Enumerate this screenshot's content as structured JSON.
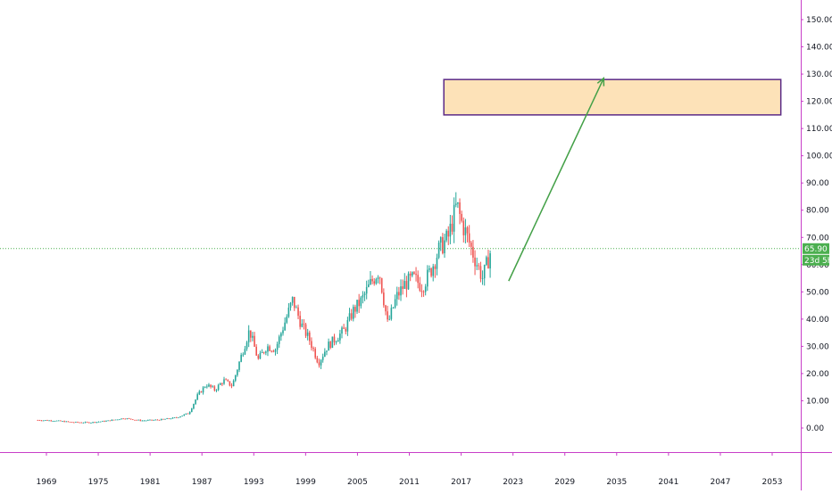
{
  "chart_data": {
    "type": "candlestick",
    "title": "",
    "xlabel": "",
    "ylabel": "",
    "x_ticks": [
      "1969",
      "1975",
      "1981",
      "1987",
      "1993",
      "1999",
      "2005",
      "2011",
      "2017",
      "2023",
      "2029",
      "2035",
      "2041",
      "2047",
      "2053"
    ],
    "y_ticks": [
      "150.00",
      "140.00",
      "130.00",
      "120.00",
      "110.00",
      "100.00",
      "90.00",
      "80.00",
      "70.00",
      "60.00",
      "50.00",
      "40.00",
      "30.00",
      "20.00",
      "10.00",
      "0.00"
    ],
    "xlim": [
      1968,
      2056
    ],
    "ylim": [
      -10,
      155
    ],
    "grid": false,
    "price_trajectory": [
      [
        1968.0,
        2.9
      ],
      [
        1970.0,
        2.7
      ],
      [
        1972.0,
        2.1
      ],
      [
        1974.0,
        2.0
      ],
      [
        1976.0,
        2.6
      ],
      [
        1978.0,
        3.6
      ],
      [
        1980.0,
        2.7
      ],
      [
        1982.0,
        3.0
      ],
      [
        1984.0,
        3.8
      ],
      [
        1985.5,
        5.5
      ],
      [
        1986.5,
        12.0
      ],
      [
        1987.5,
        16.0
      ],
      [
        1988.5,
        14.0
      ],
      [
        1989.5,
        17.5
      ],
      [
        1990.5,
        15.5
      ],
      [
        1991.5,
        26.0
      ],
      [
        1992.5,
        36.0
      ],
      [
        1993.5,
        25.0
      ],
      [
        1994.5,
        30.0
      ],
      [
        1995.5,
        29.0
      ],
      [
        1996.5,
        38.0
      ],
      [
        1997.5,
        47.0
      ],
      [
        1998.5,
        38.0
      ],
      [
        1999.5,
        32.0
      ],
      [
        2000.5,
        24.0
      ],
      [
        2001.5,
        30.0
      ],
      [
        2002.5,
        33.0
      ],
      [
        2003.5,
        36.0
      ],
      [
        2004.5,
        43.0
      ],
      [
        2005.5,
        47.0
      ],
      [
        2006.5,
        53.0
      ],
      [
        2007.5,
        58.0
      ],
      [
        2008.5,
        38.0
      ],
      [
        2009.5,
        48.0
      ],
      [
        2010.5,
        53.0
      ],
      [
        2011.5,
        55.0
      ],
      [
        2012.5,
        52.0
      ],
      [
        2013.5,
        58.0
      ],
      [
        2014.5,
        66.0
      ],
      [
        2015.5,
        70.0
      ],
      [
        2016.5,
        82.0
      ],
      [
        2017.0,
        76.0
      ],
      [
        2017.5,
        72.0
      ],
      [
        2018.5,
        63.0
      ],
      [
        2019.5,
        55.0
      ],
      [
        2020.5,
        65.9
      ]
    ],
    "last_price": "65.90",
    "countdown": "23d 5h",
    "colors": {
      "up": "#26a69a",
      "down": "#ef5350",
      "price_line": "#4caf50",
      "price_badge": "#4caf50",
      "arrow": "#43a047",
      "target_fill": "#fde2b8",
      "target_border": "#5b2a86",
      "divider": "#c83fc8"
    },
    "annotations": {
      "target_zone": {
        "x": [
          2015.0,
          2054.0
        ],
        "y": [
          115.0,
          128.0
        ]
      },
      "projection_arrow": {
        "from": [
          2022.5,
          54.0
        ],
        "to": [
          2033.5,
          128.5
        ]
      }
    }
  }
}
